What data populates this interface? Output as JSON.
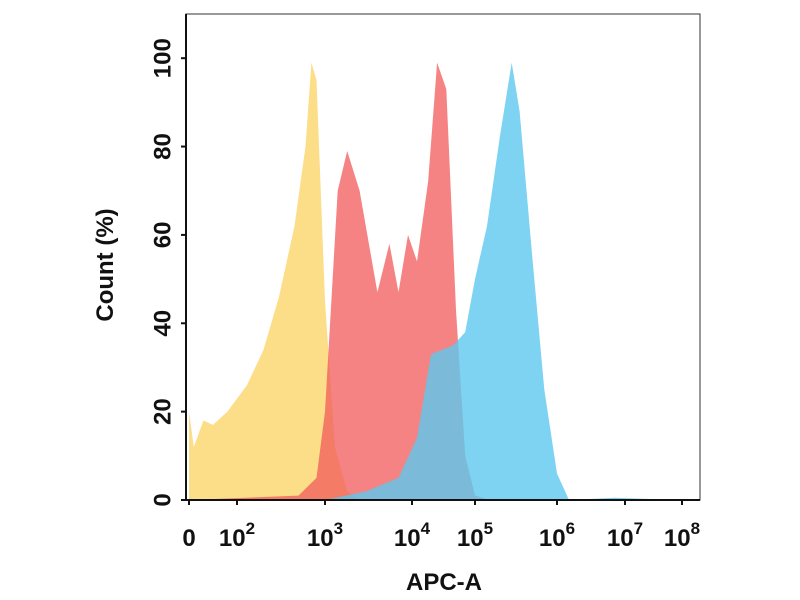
{
  "chart_data": {
    "type": "area",
    "title": "",
    "xlabel": "APC-A",
    "ylabel": "Count  (%)",
    "x_scale": "biexponential",
    "xlim": [
      0,
      100000000
    ],
    "ylim": [
      0,
      110
    ],
    "y_ticks": [
      0,
      20,
      40,
      60,
      80,
      100
    ],
    "x_ticks": [
      {
        "label": "0",
        "exponent": ""
      },
      {
        "label": "10",
        "exponent": "2"
      },
      {
        "label": "10",
        "exponent": "3"
      },
      {
        "label": "10",
        "exponent": "4"
      },
      {
        "label": "10",
        "exponent": "5"
      },
      {
        "label": "10",
        "exponent": "6"
      },
      {
        "label": "10",
        "exponent": "7"
      },
      {
        "label": "10",
        "exponent": "8"
      }
    ],
    "grid": false,
    "legend": "none",
    "series": [
      {
        "color": "#fbd46a",
        "fill_opacity": 0.8,
        "points": [
          [
            0,
            20
          ],
          [
            10,
            12
          ],
          [
            30,
            18
          ],
          [
            50,
            17
          ],
          [
            80,
            20
          ],
          [
            130,
            26
          ],
          [
            200,
            34
          ],
          [
            300,
            46
          ],
          [
            450,
            62
          ],
          [
            600,
            80
          ],
          [
            700,
            99
          ],
          [
            800,
            95
          ],
          [
            1000,
            45
          ],
          [
            1300,
            12
          ],
          [
            1800,
            2
          ],
          [
            2500,
            0
          ]
        ]
      },
      {
        "color": "#f25a5a",
        "fill_opacity": 0.75,
        "points": [
          [
            0,
            0
          ],
          [
            500,
            1
          ],
          [
            800,
            5
          ],
          [
            1000,
            20
          ],
          [
            1400,
            70
          ],
          [
            1800,
            79
          ],
          [
            2500,
            70
          ],
          [
            4000,
            47
          ],
          [
            5500,
            58
          ],
          [
            7000,
            47
          ],
          [
            9000,
            60
          ],
          [
            12000,
            54
          ],
          [
            18000,
            72
          ],
          [
            25000,
            99
          ],
          [
            35000,
            93
          ],
          [
            50000,
            43
          ],
          [
            70000,
            10
          ],
          [
            100000,
            1
          ],
          [
            150000,
            0
          ]
        ]
      },
      {
        "color": "#5cc8ed",
        "fill_opacity": 0.8,
        "points": [
          [
            0,
            0
          ],
          [
            1000,
            0
          ],
          [
            3000,
            2
          ],
          [
            7000,
            5
          ],
          [
            12000,
            14
          ],
          [
            20000,
            33
          ],
          [
            30000,
            34
          ],
          [
            45000,
            35
          ],
          [
            70000,
            38
          ],
          [
            100000,
            50
          ],
          [
            140000,
            62
          ],
          [
            200000,
            82
          ],
          [
            280000,
            99
          ],
          [
            350000,
            88
          ],
          [
            500000,
            55
          ],
          [
            700000,
            25
          ],
          [
            1000000,
            6
          ],
          [
            1500000,
            0
          ],
          [
            7000000,
            0.5
          ],
          [
            100000000,
            0
          ]
        ]
      }
    ]
  }
}
